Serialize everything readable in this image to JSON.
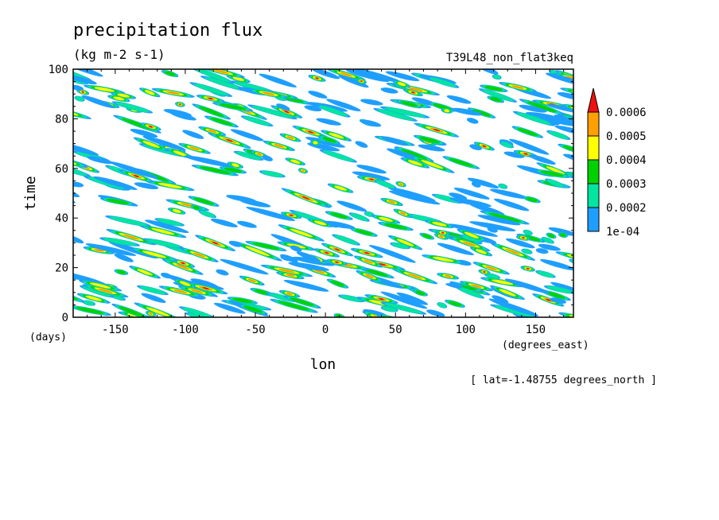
{
  "chart_data": {
    "type": "heatmap",
    "title": "precipitation flux",
    "units": "(kg m-2 s-1)",
    "run_label": "T39L48_non_flat3keq",
    "xlabel": "lon",
    "xunits": "(degrees_east)",
    "ylabel": "time",
    "yunits": "(days)",
    "slice_note": "[ lat=-1.48755 degrees_north ]",
    "xlim": [
      -180,
      177
    ],
    "ylim": [
      0,
      100
    ],
    "x_ticks": [
      "-150",
      "-100",
      "-50",
      "0",
      "50",
      "100",
      "150"
    ],
    "x_tick_values": [
      -150,
      -100,
      -50,
      0,
      50,
      100,
      150
    ],
    "y_ticks": [
      "0",
      "20",
      "40",
      "60",
      "80",
      "100"
    ],
    "y_tick_values": [
      0,
      20,
      40,
      60,
      80,
      100
    ],
    "grid": false,
    "legend_placement": "right",
    "levels": [
      {
        "label": "1e-04",
        "value": 0.0001,
        "color": "#1e9fff"
      },
      {
        "label": "0.0002",
        "value": 0.0002,
        "color": "#00e5a0"
      },
      {
        "label": "0.0003",
        "value": 0.0003,
        "color": "#00d200"
      },
      {
        "label": "0.0004",
        "value": 0.0004,
        "color": "#ffff00"
      },
      {
        "label": "0.0005",
        "value": 0.0005,
        "color": "#ff9f00"
      },
      {
        "label": "0.0006",
        "value": 0.0006,
        "color": "#f01010"
      }
    ],
    "over_color": "#f01010",
    "field_note": "Eastward-propagating precipitation streaks (approx.) over lon -180..177, days 0..100"
  }
}
